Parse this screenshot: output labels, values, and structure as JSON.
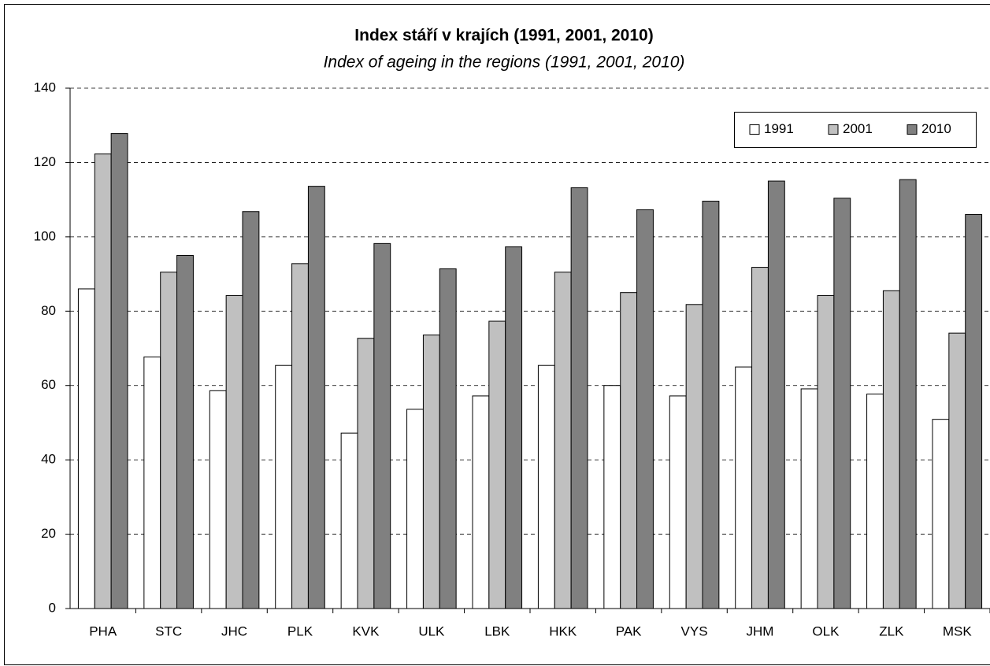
{
  "chart_data": {
    "type": "bar",
    "title": "Index stáří v krajích (1991, 2001, 2010)",
    "subtitle": "Index of ageing in the regions (1991, 2001, 2010)",
    "categories": [
      "PHA",
      "STC",
      "JHC",
      "PLK",
      "KVK",
      "ULK",
      "LBK",
      "HKK",
      "PAK",
      "VYS",
      "JHM",
      "OLK",
      "ZLK",
      "MSK"
    ],
    "series": [
      {
        "name": "1991",
        "color": "#ffffff",
        "values": [
          86,
          67.7,
          58.6,
          65.4,
          47.2,
          53.6,
          57.2,
          65.4,
          60.0,
          57.2,
          65.0,
          59.1,
          57.7,
          50.9
        ]
      },
      {
        "name": "2001",
        "color": "#c0c0c0",
        "values": [
          122.3,
          90.5,
          84.2,
          92.8,
          72.7,
          73.6,
          77.3,
          90.5,
          85.0,
          81.8,
          91.8,
          84.2,
          85.5,
          74.1
        ]
      },
      {
        "name": "2010",
        "color": "#808080",
        "values": [
          127.8,
          95,
          106.8,
          113.6,
          98.2,
          91.4,
          97.3,
          113.2,
          107.3,
          109.6,
          115.0,
          110.4,
          115.4,
          106.0
        ]
      }
    ],
    "ylim": [
      0,
      140
    ],
    "yticks": [
      0,
      20,
      40,
      60,
      80,
      100,
      120,
      140
    ],
    "grid": true,
    "legend": "top-right"
  }
}
